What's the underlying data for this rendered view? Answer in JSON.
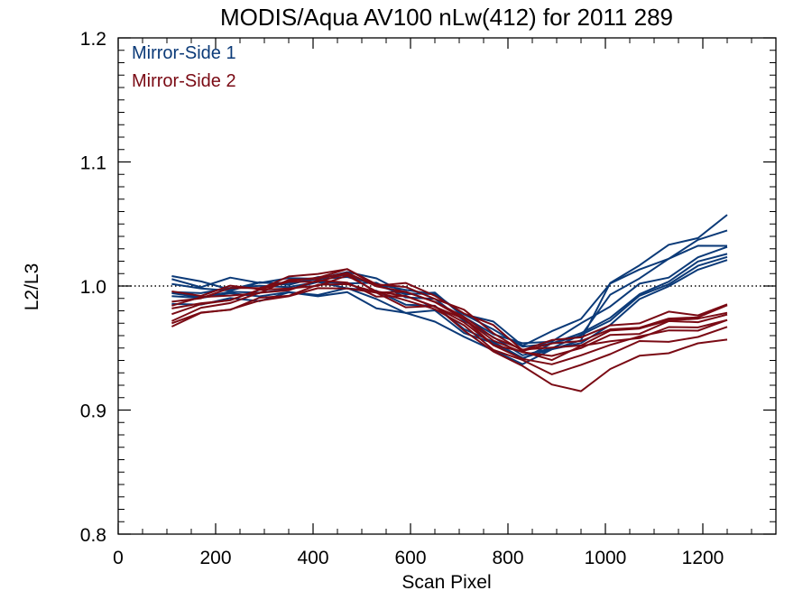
{
  "chart_data": {
    "type": "line",
    "title": "MODIS/Aqua AV100 nLw(412) for 2011 289",
    "xlabel": "Scan Pixel",
    "ylabel": "L2/L3",
    "xlim": [
      0,
      1350
    ],
    "ylim": [
      0.8,
      1.2
    ],
    "xticks": [
      0,
      200,
      400,
      600,
      800,
      1000,
      1200
    ],
    "yticks": [
      0.8,
      0.9,
      1.0,
      1.1,
      1.2
    ],
    "xtick_labels": [
      "0",
      "200",
      "400",
      "600",
      "800",
      "1000",
      "1200"
    ],
    "ytick_labels": [
      "0.8",
      "0.9",
      "1.0",
      "1.1",
      "1.2"
    ],
    "reference_line": {
      "y": 1.0,
      "style": "dotted"
    },
    "grid": false,
    "legend_position": "top-left",
    "colors": {
      "mirror_side_1": "#0b3a78",
      "mirror_side_2": "#7a0a14"
    },
    "x": [
      110,
      170,
      230,
      290,
      350,
      410,
      470,
      530,
      590,
      650,
      710,
      770,
      830,
      890,
      950,
      1010,
      1070,
      1130,
      1190,
      1250
    ],
    "series": [
      {
        "name": "Mirror-Side 1",
        "group": 1,
        "values": [
          1.008,
          1.003,
          1.001,
          1.002,
          1.004,
          1.007,
          1.009,
          1.0,
          0.996,
          0.991,
          0.976,
          0.962,
          0.952,
          0.958,
          0.968,
          0.985,
          0.998,
          1.008,
          1.02,
          1.032
        ]
      },
      {
        "name": "Mirror-Side 1",
        "group": 1,
        "values": [
          0.998,
          0.999,
          1.0,
          1.001,
          1.003,
          1.005,
          1.008,
          1.001,
          0.997,
          0.992,
          0.978,
          0.965,
          0.95,
          0.955,
          0.96,
          0.978,
          0.992,
          1.005,
          1.018,
          1.028
        ]
      },
      {
        "name": "Mirror-Side 1",
        "group": 1,
        "values": [
          0.995,
          0.996,
          0.997,
          0.999,
          1.001,
          1.003,
          1.006,
          0.999,
          0.994,
          0.988,
          0.972,
          0.958,
          0.946,
          0.95,
          0.957,
          0.975,
          0.99,
          1.002,
          1.015,
          1.024
        ]
      },
      {
        "name": "Mirror-Side 1",
        "group": 1,
        "values": [
          0.992,
          0.993,
          0.994,
          0.995,
          0.997,
          1.0,
          1.002,
          0.994,
          0.988,
          0.982,
          0.966,
          0.952,
          0.942,
          0.947,
          0.955,
          0.972,
          0.987,
          1.0,
          1.012,
          1.022
        ]
      },
      {
        "name": "Mirror-Side 1",
        "group": 1,
        "values": [
          1.004,
          1.002,
          1.003,
          1.004,
          1.006,
          1.009,
          1.012,
          1.003,
          0.998,
          0.993,
          0.98,
          0.968,
          0.955,
          0.962,
          0.975,
          1.0,
          1.012,
          1.022,
          1.035,
          1.048
        ]
      },
      {
        "name": "Mirror-Side 1",
        "group": 1,
        "values": [
          0.99,
          0.991,
          0.992,
          0.992,
          0.994,
          0.996,
          0.998,
          0.988,
          0.982,
          0.978,
          0.965,
          0.95,
          0.944,
          0.952,
          0.962,
          0.99,
          1.008,
          1.018,
          1.03,
          1.036
        ]
      },
      {
        "name": "Mirror-Side 1",
        "group": 1,
        "values": [
          0.983,
          0.986,
          0.988,
          0.989,
          0.991,
          0.993,
          0.994,
          0.983,
          0.976,
          0.97,
          0.96,
          0.946,
          0.94,
          0.948,
          0.958,
          1.0,
          1.018,
          1.03,
          1.042,
          1.058
        ]
      },
      {
        "name": "Mirror-Side 2",
        "group": 2,
        "values": [
          0.995,
          0.994,
          0.998,
          1.001,
          1.006,
          1.01,
          1.013,
          1.004,
          0.999,
          0.994,
          0.98,
          0.966,
          0.952,
          0.956,
          0.962,
          0.968,
          0.972,
          0.976,
          0.98,
          0.984
        ]
      },
      {
        "name": "Mirror-Side 2",
        "group": 2,
        "values": [
          0.99,
          0.992,
          0.996,
          0.999,
          1.004,
          1.008,
          1.011,
          1.002,
          0.997,
          0.992,
          0.978,
          0.962,
          0.95,
          0.952,
          0.958,
          0.965,
          0.969,
          0.973,
          0.977,
          0.981
        ]
      },
      {
        "name": "Mirror-Side 2",
        "group": 2,
        "values": [
          0.986,
          0.989,
          0.994,
          0.998,
          1.003,
          1.006,
          1.009,
          1.0,
          0.995,
          0.99,
          0.975,
          0.96,
          0.948,
          0.95,
          0.955,
          0.962,
          0.966,
          0.97,
          0.974,
          0.978
        ]
      },
      {
        "name": "Mirror-Side 2",
        "group": 2,
        "values": [
          0.982,
          0.986,
          0.991,
          0.996,
          1.001,
          1.004,
          1.007,
          0.998,
          0.993,
          0.988,
          0.972,
          0.958,
          0.946,
          0.947,
          0.952,
          0.96,
          0.964,
          0.968,
          0.972,
          0.975
        ]
      },
      {
        "name": "Mirror-Side 2",
        "group": 2,
        "values": [
          0.978,
          0.983,
          0.989,
          0.994,
          0.999,
          1.002,
          1.005,
          0.996,
          0.991,
          0.986,
          0.97,
          0.955,
          0.944,
          0.944,
          0.948,
          0.957,
          0.961,
          0.965,
          0.969,
          0.972
        ]
      },
      {
        "name": "Mirror-Side 2",
        "group": 2,
        "values": [
          0.975,
          0.98,
          0.987,
          0.992,
          0.998,
          1.001,
          1.004,
          0.995,
          0.99,
          0.984,
          0.968,
          0.953,
          0.941,
          0.94,
          0.944,
          0.954,
          0.958,
          0.962,
          0.966,
          0.969
        ]
      },
      {
        "name": "Mirror-Side 2",
        "group": 2,
        "values": [
          0.97,
          0.977,
          0.984,
          0.99,
          0.996,
          0.999,
          1.002,
          0.993,
          0.988,
          0.982,
          0.965,
          0.95,
          0.938,
          0.932,
          0.936,
          0.948,
          0.952,
          0.957,
          0.961,
          0.965
        ]
      },
      {
        "name": "Mirror-Side 2",
        "group": 2,
        "values": [
          0.968,
          0.975,
          0.982,
          0.988,
          0.994,
          0.997,
          1.0,
          0.991,
          0.986,
          0.98,
          0.963,
          0.948,
          0.935,
          0.922,
          0.915,
          0.935,
          0.94,
          0.946,
          0.952,
          0.958
        ]
      }
    ]
  }
}
